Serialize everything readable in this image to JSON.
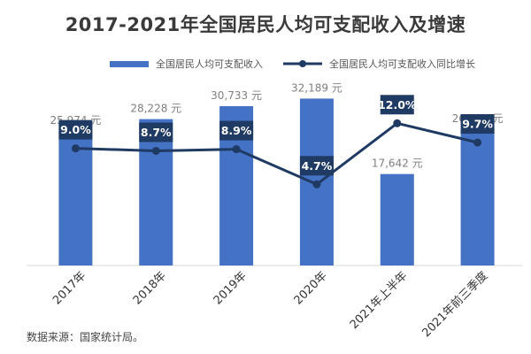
{
  "title": "2017-2021年全国居民人均可支配收入及增速",
  "source_note": "数据来源：国家统计局。",
  "colors": {
    "bar": "#4472C4",
    "line": "#1F3A63",
    "label_box": "#1F3A63",
    "value_text": "#7F7F7F"
  },
  "chart_data": {
    "type": "bar+line",
    "categories": [
      "2017年",
      "2018年",
      "2019年",
      "2020年",
      "2021年上半年",
      "2021年前三季度"
    ],
    "series": [
      {
        "name": "全国居民人均可支配收入",
        "kind": "bar",
        "values": [
          25974,
          28228,
          30733,
          32189,
          17642,
          26265
        ],
        "labels": [
          "25,974 元",
          "28,228 元",
          "30,733 元",
          "32,189 元",
          "17,642 元",
          "26,265 元"
        ]
      },
      {
        "name": "全国居民人均可支配收入同比增长",
        "kind": "line",
        "values": [
          9.0,
          8.7,
          8.9,
          4.7,
          12.0,
          9.7
        ],
        "labels": [
          "9.0%",
          "8.7%",
          "8.9%",
          "4.7%",
          "12.0%",
          "9.7%"
        ]
      }
    ],
    "bar_axis_range": [
      0,
      35500
    ],
    "line_axis_range": [
      -5,
      17
    ],
    "legend_position": "top"
  }
}
